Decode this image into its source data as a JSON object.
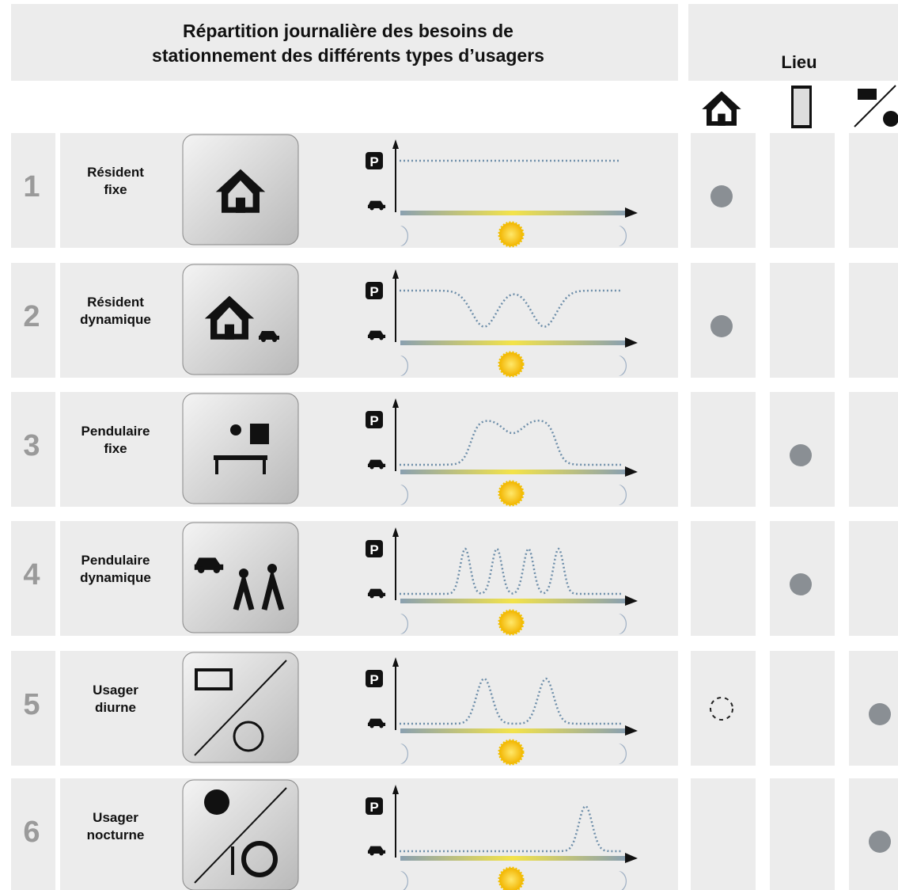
{
  "header": {
    "title": [
      "Répartition journalière des besoins de",
      "stationnement des différents types d’usagers"
    ],
    "place": "Lieu"
  },
  "rows": [
    {
      "number": 1,
      "label": [
        "Résident",
        "fixe"
      ]
    },
    {
      "number": 2,
      "label": [
        "Résident",
        "dynamique"
      ]
    },
    {
      "number": 3,
      "label": [
        "Pendulaire",
        "fixe"
      ]
    },
    {
      "number": 4,
      "label": [
        "Pendulaire",
        "dynamique"
      ]
    },
    {
      "number": 5,
      "label": [
        "Usager",
        "diurne"
      ]
    },
    {
      "number": 6,
      "label": [
        "Usager",
        "nocturne"
      ]
    }
  ]
}
